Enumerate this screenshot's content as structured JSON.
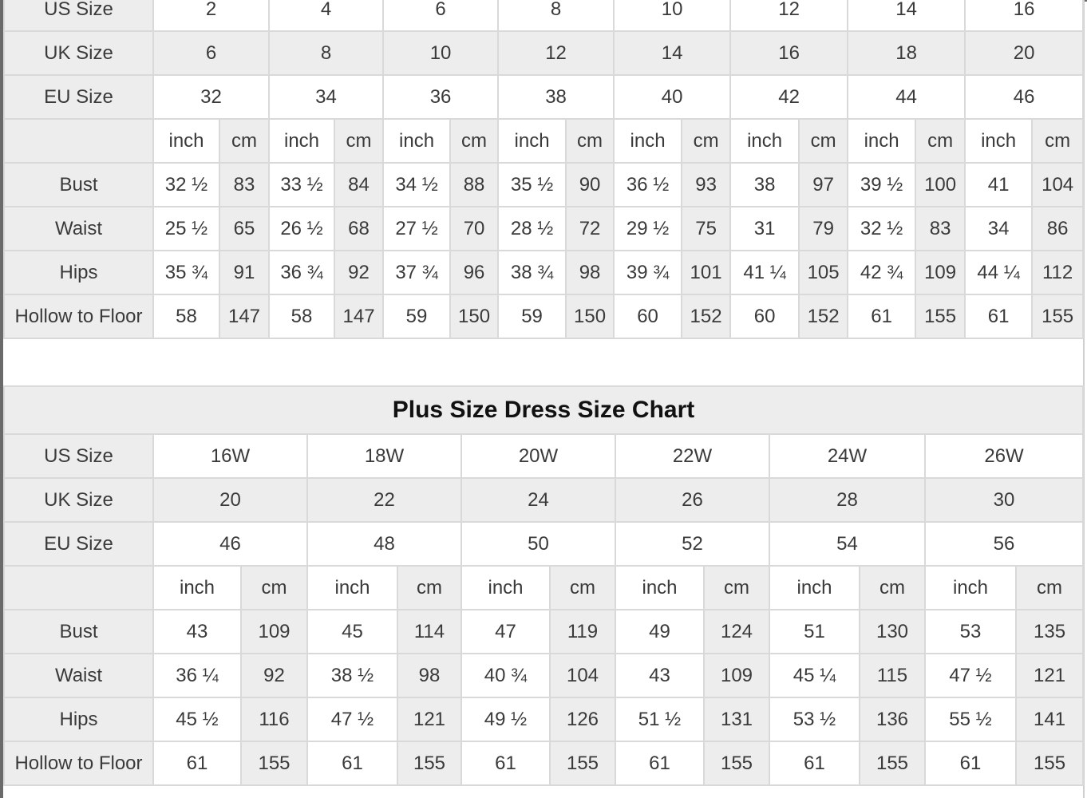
{
  "standard_chart": {
    "size_rows": [
      {
        "label": "US Size",
        "values": [
          "2",
          "4",
          "6",
          "8",
          "10",
          "12",
          "14",
          "16"
        ]
      },
      {
        "label": "UK Size",
        "values": [
          "6",
          "8",
          "10",
          "12",
          "14",
          "16",
          "18",
          "20"
        ]
      },
      {
        "label": "EU Size",
        "values": [
          "32",
          "34",
          "36",
          "38",
          "40",
          "42",
          "44",
          "46"
        ]
      }
    ],
    "unit_labels": [
      "inch",
      "cm"
    ],
    "measure_rows": [
      {
        "label": "Bust",
        "values": [
          "32 ½",
          "83",
          "33 ½",
          "84",
          "34 ½",
          "88",
          "35 ½",
          "90",
          "36 ½",
          "93",
          "38",
          "97",
          "39 ½",
          "100",
          "41",
          "104"
        ]
      },
      {
        "label": "Waist",
        "values": [
          "25 ½",
          "65",
          "26 ½",
          "68",
          "27 ½",
          "70",
          "28 ½",
          "72",
          "29 ½",
          "75",
          "31",
          "79",
          "32 ½",
          "83",
          "34",
          "86"
        ]
      },
      {
        "label": "Hips",
        "values": [
          "35 ¾",
          "91",
          "36 ¾",
          "92",
          "37 ¾",
          "96",
          "38 ¾",
          "98",
          "39 ¾",
          "101",
          "41 ¼",
          "105",
          "42 ¾",
          "109",
          "44 ¼",
          "112"
        ]
      },
      {
        "label": "Hollow to Floor",
        "values": [
          "58",
          "147",
          "58",
          "147",
          "59",
          "150",
          "59",
          "150",
          "60",
          "152",
          "60",
          "152",
          "61",
          "155",
          "61",
          "155"
        ]
      }
    ]
  },
  "plus_chart": {
    "title": "Plus Size Dress Size Chart",
    "size_rows": [
      {
        "label": "US Size",
        "values": [
          "16W",
          "18W",
          "20W",
          "22W",
          "24W",
          "26W"
        ]
      },
      {
        "label": "UK Size",
        "values": [
          "20",
          "22",
          "24",
          "26",
          "28",
          "30"
        ]
      },
      {
        "label": "EU Size",
        "values": [
          "46",
          "48",
          "50",
          "52",
          "54",
          "56"
        ]
      }
    ],
    "unit_labels": [
      "inch",
      "cm"
    ],
    "measure_rows": [
      {
        "label": "Bust",
        "values": [
          "43",
          "109",
          "45",
          "114",
          "47",
          "119",
          "49",
          "124",
          "51",
          "130",
          "53",
          "135"
        ]
      },
      {
        "label": "Waist",
        "values": [
          "36 ¼",
          "92",
          "38 ½",
          "98",
          "40 ¾",
          "104",
          "43",
          "109",
          "45 ¼",
          "115",
          "47 ½",
          "121"
        ]
      },
      {
        "label": "Hips",
        "values": [
          "45 ½",
          "116",
          "47 ½",
          "121",
          "49 ½",
          "126",
          "51 ½",
          "131",
          "53 ½",
          "136",
          "55 ½",
          "141"
        ]
      },
      {
        "label": "Hollow to Floor",
        "values": [
          "61",
          "155",
          "61",
          "155",
          "61",
          "155",
          "61",
          "155",
          "61",
          "155",
          "61",
          "155"
        ]
      }
    ]
  },
  "colors": {
    "label_bg": "#ededed",
    "cell_bg": "#ffffff",
    "border": "#d9d9d9",
    "text": "#3a3a3a"
  }
}
